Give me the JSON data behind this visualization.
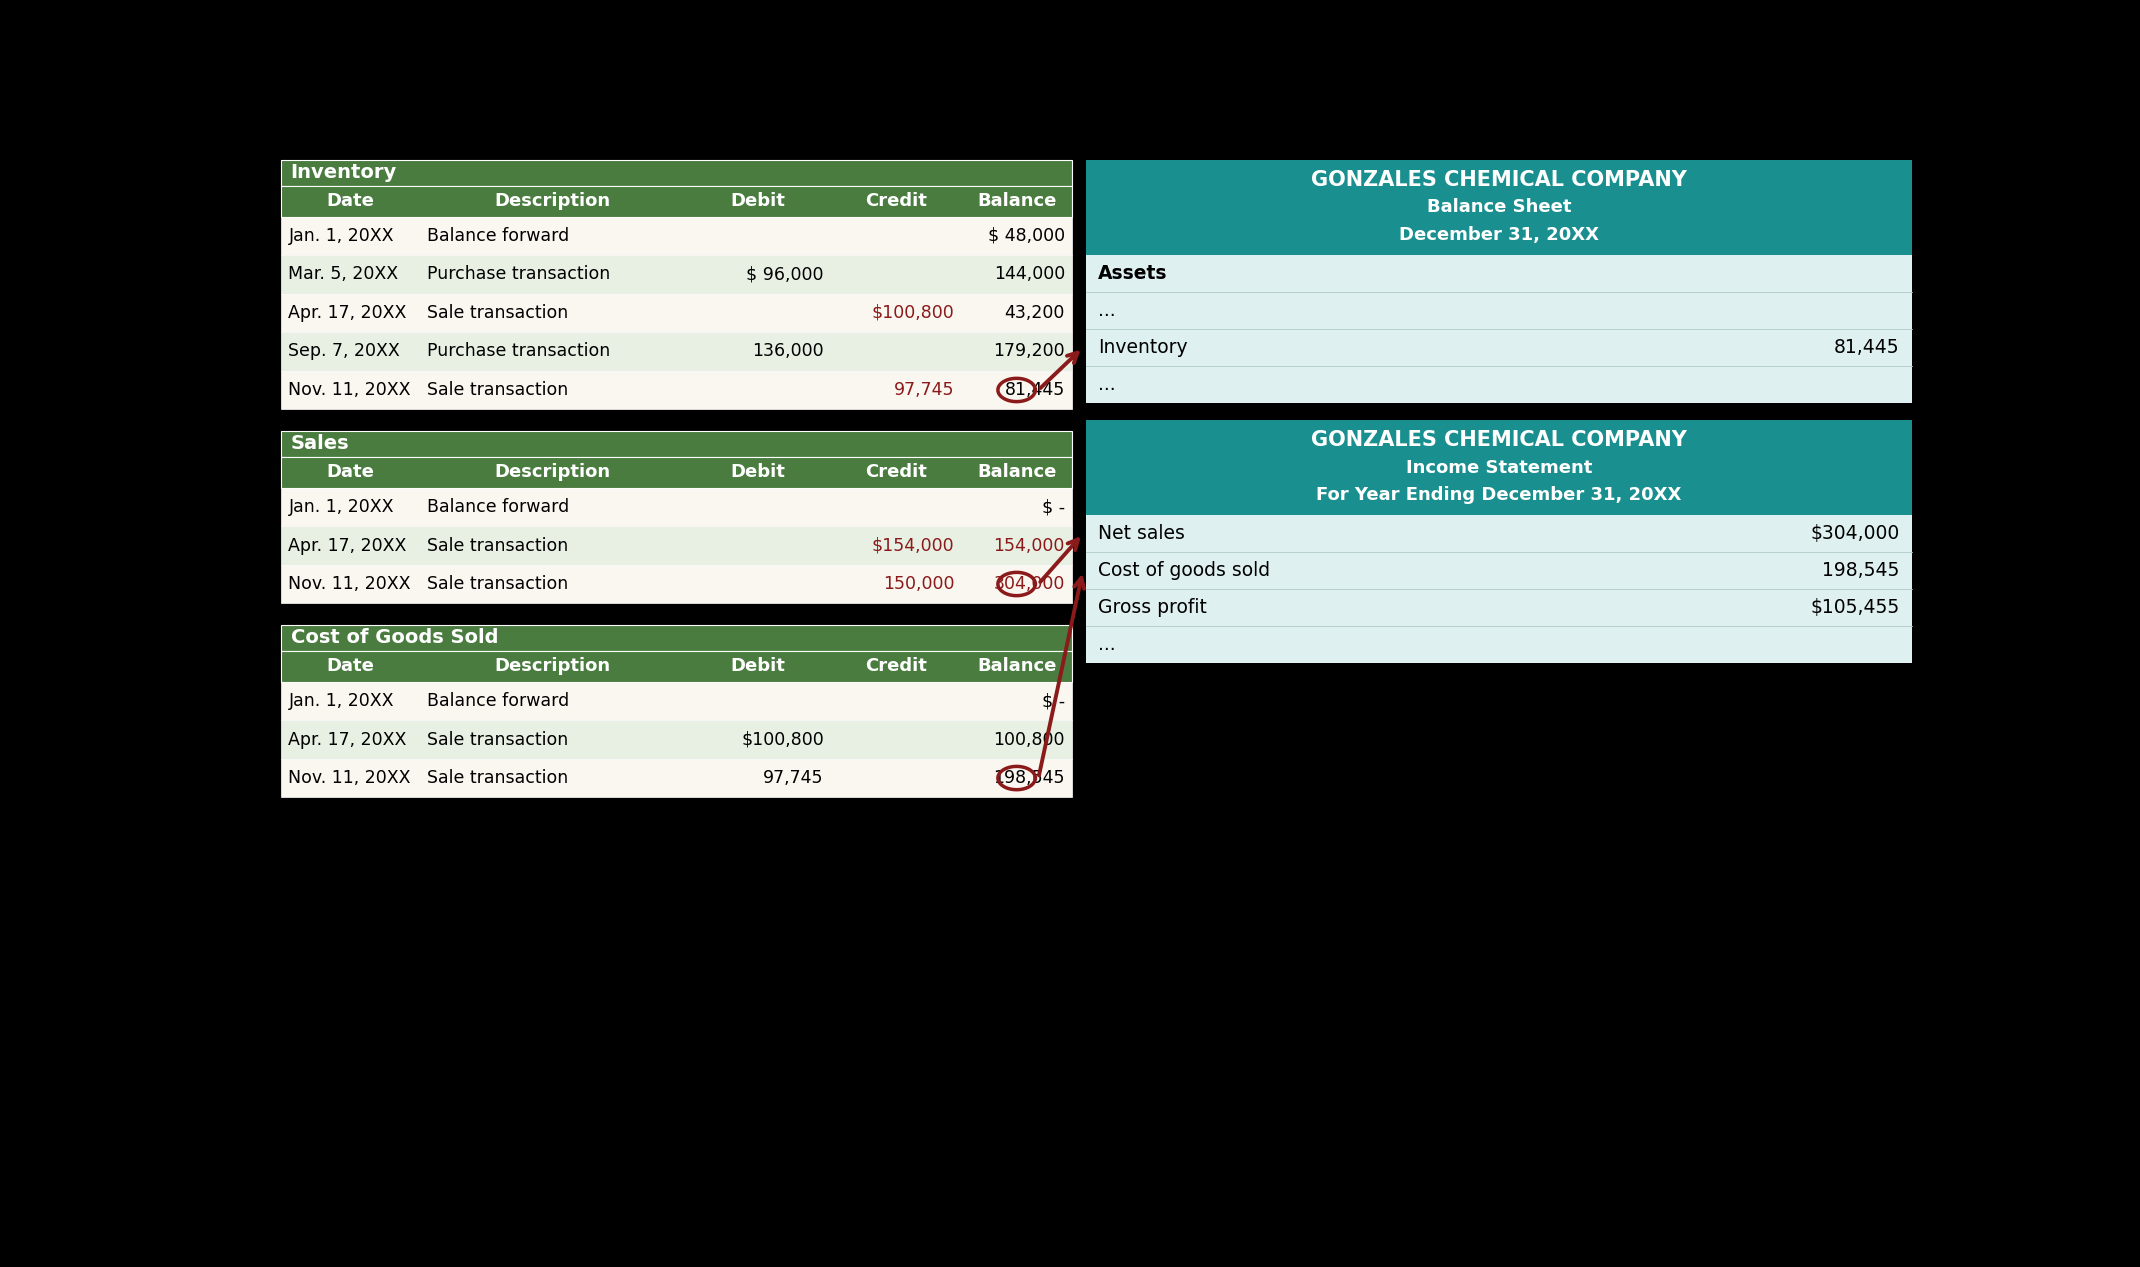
{
  "bg_color": "#000000",
  "green_dark": "#4a7c3f",
  "teal_header": "#1a8f8f",
  "red": "#8b1a1a",
  "cream": "#faf6f0",
  "green_lighter": "#e8f0e3",
  "panel_bg": "#dff0f0",
  "inv_title": "Inventory",
  "inv_headers": [
    "Date",
    "Description",
    "Debit",
    "Credit",
    "Balance"
  ],
  "inv_rows": [
    [
      "Jan. 1, 20XX",
      "Balance forward",
      "",
      "",
      "$ 48,000"
    ],
    [
      "Mar. 5, 20XX",
      "Purchase transaction",
      "$ 96,000",
      "",
      "144,000"
    ],
    [
      "Apr. 17, 20XX",
      "Sale transaction",
      "",
      "$100,800",
      "43,200"
    ],
    [
      "Sep. 7, 20XX",
      "Purchase transaction",
      "136,000",
      "",
      "179,200"
    ],
    [
      "Nov. 11, 20XX",
      "Sale transaction",
      "",
      "97,745",
      "81,445"
    ]
  ],
  "inv_red_credit_rows": [
    2,
    4
  ],
  "inv_circled_row": 4,
  "inv_circled_col": 4,
  "sales_title": "Sales",
  "sales_headers": [
    "Date",
    "Description",
    "Debit",
    "Credit",
    "Balance"
  ],
  "sales_rows": [
    [
      "Jan. 1, 20XX",
      "Balance forward",
      "",
      "",
      "$ -"
    ],
    [
      "Apr. 17, 20XX",
      "Sale transaction",
      "",
      "$154,000",
      "154,000"
    ],
    [
      "Nov. 11, 20XX",
      "Sale transaction",
      "",
      "150,000",
      "304,000"
    ]
  ],
  "sales_red_credit_rows": [
    1,
    2
  ],
  "sales_circled_row": 2,
  "sales_circled_col": 4,
  "cogs_title": "Cost of Goods Sold",
  "cogs_headers": [
    "Date",
    "Description",
    "Debit",
    "Credit",
    "Balance"
  ],
  "cogs_rows": [
    [
      "Jan. 1, 20XX",
      "Balance forward",
      "",
      "",
      "$ -"
    ],
    [
      "Apr. 17, 20XX",
      "Sale transaction",
      "$100,800",
      "",
      "100,800"
    ],
    [
      "Nov. 11, 20XX",
      "Sale transaction",
      "97,745",
      "",
      "198,545"
    ]
  ],
  "cogs_red_credit_rows": [],
  "cogs_circled_row": 2,
  "cogs_circled_col": 4,
  "bs_title1": "GONZALES CHEMICAL COMPANY",
  "bs_title2": "Balance Sheet",
  "bs_title3": "December 31, 20XX",
  "is_title1": "GONZALES CHEMICAL COMPANY",
  "is_title2": "Income Statement",
  "is_title3": "For Year Ending December 31, 20XX"
}
